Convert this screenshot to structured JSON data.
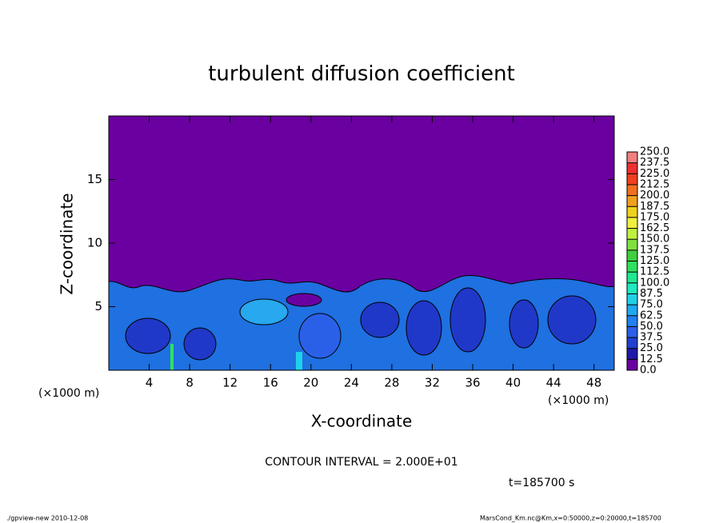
{
  "chart_data": {
    "type": "contour",
    "title": "turbulent diffusion coefficient",
    "xlabel": "X-coordinate",
    "ylabel": "Z-coordinate",
    "x_unit_left": "(×1000 m)",
    "x_unit_right": "(×1000 m)",
    "xlim": [
      0,
      50
    ],
    "ylim": [
      0,
      20
    ],
    "xticks": [
      4,
      8,
      12,
      16,
      20,
      24,
      28,
      32,
      36,
      40,
      44,
      48
    ],
    "yticks": [
      5,
      10,
      15
    ],
    "colorbar": {
      "lim": [
        0,
        250
      ],
      "ticks": [
        {
          "value": 0,
          "label": "0.0"
        },
        {
          "value": 12.5,
          "label": "12.5"
        },
        {
          "value": 25,
          "label": "25.0"
        },
        {
          "value": 37.5,
          "label": "37.5"
        },
        {
          "value": 50,
          "label": "50.0"
        },
        {
          "value": 62.5,
          "label": "62.5"
        },
        {
          "value": 75,
          "label": "75.0"
        },
        {
          "value": 87.5,
          "label": "87.5"
        },
        {
          "value": 100,
          "label": "100.0"
        },
        {
          "value": 112.5,
          "label": "112.5"
        },
        {
          "value": 125,
          "label": "125.0"
        },
        {
          "value": 137.5,
          "label": "137.5"
        },
        {
          "value": 150,
          "label": "150.0"
        },
        {
          "value": 162.5,
          "label": "162.5"
        },
        {
          "value": 175,
          "label": "175.0"
        },
        {
          "value": 187.5,
          "label": "187.5"
        },
        {
          "value": 200,
          "label": "200.0"
        },
        {
          "value": 212.5,
          "label": "212.5"
        },
        {
          "value": 225,
          "label": "225.0"
        },
        {
          "value": 237.5,
          "label": "237.5"
        },
        {
          "value": 250,
          "label": "250.0"
        }
      ],
      "colors": [
        "#6a00a0",
        "#2018a8",
        "#2040d0",
        "#2a60e8",
        "#2080f0",
        "#20a8f0",
        "#20d0e8",
        "#20e8c0",
        "#20e890",
        "#30e060",
        "#40d040",
        "#80e040",
        "#c0f040",
        "#f0f040",
        "#f0d020",
        "#f0a020",
        "#f07020",
        "#f04020",
        "#f03030",
        "#f08080"
      ]
    },
    "contour_interval": "CONTOUR INTERVAL = 2.000E+01",
    "time_label": "t=185700 s",
    "footer_left": "./gpview-new  2010-12-08",
    "footer_right": "MarsCond_Km.nc@Km,x=0:50000,z=0:20000,t=185700"
  }
}
